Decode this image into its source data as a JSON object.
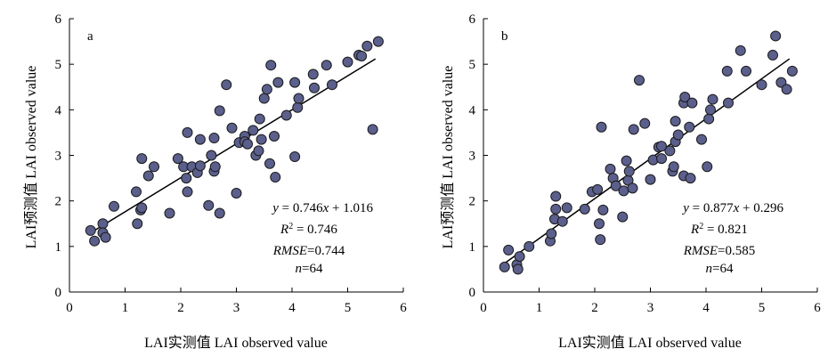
{
  "chart_data": [
    {
      "type": "scatter",
      "panel_label": "a",
      "xlabel": "LAI实测值 LAI  observed value",
      "ylabel": "LAI预测值 LAI observed value",
      "xlim": [
        0,
        6
      ],
      "ylim": [
        0,
        6
      ],
      "xticks": [
        "0",
        "1",
        "2",
        "3",
        "4",
        "5",
        "6"
      ],
      "yticks": [
        "0",
        "1",
        "2",
        "3",
        "4",
        "5",
        "6"
      ],
      "fit_line": {
        "slope": 0.746,
        "intercept": 1.016,
        "x_range": [
          0.4,
          5.5
        ]
      },
      "stats": {
        "eq_prefix": "y",
        "eq_body": " = 0.746",
        "eq_var": "x",
        "eq_tail": " + 1.016",
        "r2_label": "R",
        "r2_sup": "2",
        "r2_value": " = 0.746",
        "rmse_label": "RMSE",
        "rmse_value": "=0.744",
        "n_label": "n",
        "n_value": "=64"
      },
      "points": [
        [
          0.38,
          1.35
        ],
        [
          0.45,
          1.12
        ],
        [
          0.6,
          1.5
        ],
        [
          0.6,
          1.3
        ],
        [
          0.65,
          1.2
        ],
        [
          0.8,
          1.88
        ],
        [
          1.2,
          2.2
        ],
        [
          1.22,
          1.5
        ],
        [
          1.28,
          1.8
        ],
        [
          1.3,
          1.85
        ],
        [
          1.3,
          2.93
        ],
        [
          1.42,
          2.55
        ],
        [
          1.52,
          2.75
        ],
        [
          1.8,
          1.73
        ],
        [
          1.95,
          2.93
        ],
        [
          2.05,
          2.75
        ],
        [
          2.1,
          2.5
        ],
        [
          2.12,
          2.2
        ],
        [
          2.12,
          3.5
        ],
        [
          2.2,
          2.75
        ],
        [
          2.3,
          2.62
        ],
        [
          2.35,
          2.77
        ],
        [
          2.35,
          3.35
        ],
        [
          2.5,
          1.9
        ],
        [
          2.55,
          3.0
        ],
        [
          2.6,
          3.38
        ],
        [
          2.6,
          2.65
        ],
        [
          2.62,
          2.75
        ],
        [
          2.7,
          1.73
        ],
        [
          2.7,
          3.98
        ],
        [
          2.82,
          4.55
        ],
        [
          2.92,
          3.6
        ],
        [
          3.0,
          2.17
        ],
        [
          3.05,
          3.28
        ],
        [
          3.15,
          3.42
        ],
        [
          3.15,
          3.3
        ],
        [
          3.3,
          3.55
        ],
        [
          3.35,
          3.0
        ],
        [
          3.4,
          3.1
        ],
        [
          3.42,
          3.8
        ],
        [
          3.45,
          3.35
        ],
        [
          3.5,
          4.25
        ],
        [
          3.55,
          4.45
        ],
        [
          3.6,
          2.82
        ],
        [
          3.62,
          4.98
        ],
        [
          3.68,
          3.42
        ],
        [
          3.7,
          2.52
        ],
        [
          3.75,
          4.6
        ],
        [
          3.9,
          3.88
        ],
        [
          4.05,
          2.97
        ],
        [
          4.05,
          4.6
        ],
        [
          4.1,
          4.05
        ],
        [
          4.12,
          4.25
        ],
        [
          4.38,
          4.78
        ],
        [
          4.4,
          4.48
        ],
        [
          4.62,
          4.98
        ],
        [
          4.72,
          4.55
        ],
        [
          5.0,
          5.05
        ],
        [
          5.2,
          5.2
        ],
        [
          5.25,
          5.18
        ],
        [
          5.35,
          5.4
        ],
        [
          5.45,
          3.57
        ],
        [
          5.55,
          5.5
        ],
        [
          3.2,
          3.25
        ]
      ]
    },
    {
      "type": "scatter",
      "panel_label": "b",
      "xlabel": "LAI实测值 LAI  observed value",
      "ylabel": "LAI预测值 LAI observed value",
      "xlim": [
        0,
        6
      ],
      "ylim": [
        0,
        6
      ],
      "xticks": [
        "0",
        "1",
        "2",
        "3",
        "4",
        "5",
        "6"
      ],
      "yticks": [
        "0",
        "1",
        "2",
        "3",
        "4",
        "5",
        "6"
      ],
      "fit_line": {
        "slope": 0.877,
        "intercept": 0.296,
        "x_range": [
          0.4,
          5.5
        ]
      },
      "stats": {
        "eq_prefix": "y",
        "eq_body": " = 0.877",
        "eq_var": "x",
        "eq_tail": " + 0.296",
        "r2_label": "R",
        "r2_sup": "2",
        "r2_value": " = 0.821",
        "rmse_label": "RMSE",
        "rmse_value": "=0.585",
        "n_label": "n",
        "n_value": "=64"
      },
      "points": [
        [
          0.38,
          0.55
        ],
        [
          0.45,
          0.92
        ],
        [
          0.6,
          0.6
        ],
        [
          0.62,
          0.5
        ],
        [
          0.65,
          0.78
        ],
        [
          0.82,
          1.0
        ],
        [
          1.2,
          1.12
        ],
        [
          1.22,
          1.28
        ],
        [
          1.28,
          1.6
        ],
        [
          1.3,
          1.82
        ],
        [
          1.3,
          2.1
        ],
        [
          1.42,
          1.55
        ],
        [
          1.5,
          1.85
        ],
        [
          1.82,
          1.82
        ],
        [
          1.95,
          2.2
        ],
        [
          2.05,
          2.25
        ],
        [
          2.08,
          1.5
        ],
        [
          2.1,
          1.15
        ],
        [
          2.12,
          3.62
        ],
        [
          2.15,
          1.8
        ],
        [
          2.28,
          2.7
        ],
        [
          2.33,
          2.5
        ],
        [
          2.38,
          2.33
        ],
        [
          2.5,
          1.65
        ],
        [
          2.52,
          2.22
        ],
        [
          2.57,
          2.88
        ],
        [
          2.6,
          2.45
        ],
        [
          2.62,
          2.65
        ],
        [
          2.68,
          2.28
        ],
        [
          2.7,
          3.57
        ],
        [
          2.8,
          4.65
        ],
        [
          2.9,
          3.7
        ],
        [
          3.0,
          2.47
        ],
        [
          3.05,
          2.9
        ],
        [
          3.15,
          3.18
        ],
        [
          3.2,
          2.93
        ],
        [
          3.35,
          3.1
        ],
        [
          3.4,
          2.65
        ],
        [
          3.42,
          2.75
        ],
        [
          3.45,
          3.75
        ],
        [
          3.45,
          3.3
        ],
        [
          3.5,
          3.45
        ],
        [
          3.6,
          4.15
        ],
        [
          3.6,
          2.55
        ],
        [
          3.62,
          4.28
        ],
        [
          3.7,
          3.62
        ],
        [
          3.72,
          2.5
        ],
        [
          3.75,
          4.15
        ],
        [
          3.92,
          3.35
        ],
        [
          4.02,
          2.75
        ],
        [
          4.05,
          3.8
        ],
        [
          4.08,
          4.0
        ],
        [
          4.12,
          4.23
        ],
        [
          4.38,
          4.85
        ],
        [
          4.4,
          4.15
        ],
        [
          4.62,
          5.3
        ],
        [
          4.72,
          4.85
        ],
        [
          5.0,
          4.55
        ],
        [
          5.2,
          5.2
        ],
        [
          5.25,
          5.62
        ],
        [
          5.35,
          4.6
        ],
        [
          5.45,
          4.45
        ],
        [
          5.55,
          4.85
        ],
        [
          3.2,
          3.2
        ]
      ]
    }
  ]
}
